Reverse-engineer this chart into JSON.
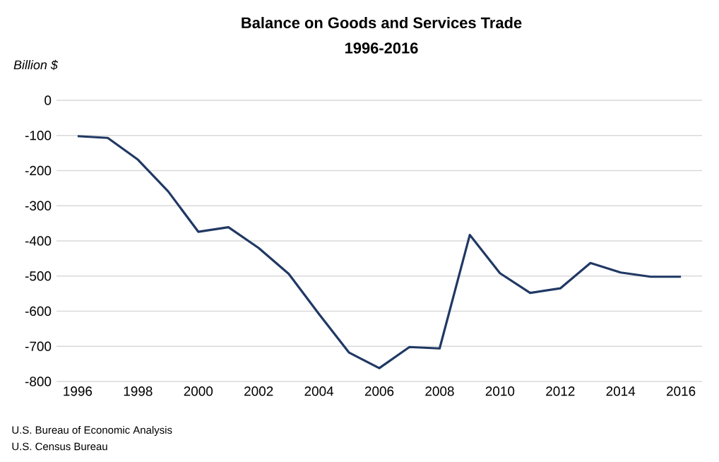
{
  "chart_data": {
    "type": "line",
    "title": "Balance on Goods and Services Trade",
    "subtitle": "1996-2016",
    "ylabel": "Billion $",
    "annotations": [
      "U.S. Bureau of Economic Analysis",
      "U.S. Census Bureau"
    ],
    "x": [
      1996,
      1997,
      1998,
      1999,
      2000,
      2001,
      2002,
      2003,
      2004,
      2005,
      2006,
      2007,
      2008,
      2009,
      2010,
      2011,
      2012,
      2013,
      2014,
      2015,
      2016
    ],
    "series": [
      {
        "color": "#203864",
        "values": [
          -102,
          -107,
          -169,
          -259,
          -374,
          -361,
          -420,
          -494,
          -608,
          -718,
          -762,
          -702,
          -706,
          -383,
          -492,
          -548,
          -535,
          -463,
          -490,
          -502,
          -502
        ]
      }
    ],
    "xlim": [
      1995.3,
      2016.7
    ],
    "ylim": [
      -800,
      0
    ],
    "xticks": [
      1996,
      1998,
      2000,
      2002,
      2004,
      2006,
      2008,
      2010,
      2012,
      2014,
      2016
    ],
    "yticks": [
      -800,
      -700,
      -600,
      -500,
      -400,
      -300,
      -200,
      -100,
      0
    ],
    "grid": "y",
    "marker": "none",
    "line_style": "solid"
  }
}
